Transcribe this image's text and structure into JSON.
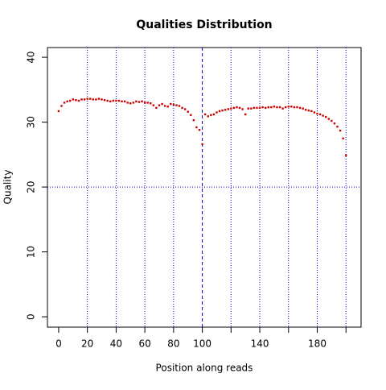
{
  "chart_data": {
    "type": "scatter",
    "title": "Qualities Distribution",
    "x_label": "Position along reads",
    "y_label": "Quality",
    "x": [
      0,
      2,
      4,
      6,
      8,
      10,
      12,
      14,
      16,
      18,
      20,
      22,
      24,
      26,
      28,
      30,
      32,
      34,
      36,
      38,
      40,
      42,
      44,
      46,
      48,
      50,
      52,
      54,
      56,
      58,
      60,
      62,
      64,
      66,
      68,
      70,
      72,
      74,
      76,
      78,
      80,
      82,
      84,
      86,
      88,
      90,
      92,
      94,
      96,
      98,
      100,
      102,
      104,
      106,
      108,
      110,
      112,
      114,
      116,
      118,
      120,
      122,
      124,
      126,
      128,
      130,
      132,
      134,
      136,
      138,
      140,
      142,
      144,
      146,
      148,
      150,
      152,
      154,
      156,
      158,
      160,
      162,
      164,
      166,
      168,
      170,
      172,
      174,
      176,
      178,
      180,
      182,
      184,
      186,
      188,
      190,
      192,
      194,
      196,
      198,
      200
    ],
    "series": [
      {
        "color": "#cc0000",
        "values": [
          31.7,
          32.5,
          33,
          33.2,
          33.3,
          33.5,
          33.4,
          33.3,
          33.5,
          33.5,
          33.6,
          33.6,
          33.5,
          33.5,
          33.6,
          33.5,
          33.4,
          33.3,
          33.2,
          33.3,
          33.3,
          33.3,
          33.2,
          33.2,
          33,
          32.9,
          33,
          33.2,
          33.1,
          33.2,
          33,
          33,
          32.9,
          32.6,
          32.2,
          32.6,
          32.8,
          32.5,
          32.4,
          32.8,
          32.7,
          32.6,
          32.5,
          32.2,
          32,
          31.6,
          31.1,
          30.3,
          29.2,
          28.8,
          26.6,
          31.2,
          30.9,
          31.1,
          31.2,
          31.5,
          31.7,
          31.8,
          31.9,
          32,
          32.1,
          32.2,
          32.3,
          32.2,
          32,
          31.2,
          32.1,
          32.1,
          32.2,
          32.2,
          32.2,
          32.3,
          32.2,
          32.3,
          32.3,
          32.4,
          32.3,
          32.3,
          32.1,
          32.3,
          32.4,
          32.4,
          32.3,
          32.3,
          32.2,
          32.1,
          31.9,
          31.8,
          31.7,
          31.5,
          31.3,
          31.2,
          31,
          30.8,
          30.5,
          30.2,
          29.8,
          29.3,
          28.7,
          27.5,
          24.9
        ]
      }
    ],
    "xlim": [
      -7.8,
      210.5
    ],
    "ylim": [
      -1.6,
      41.5
    ],
    "xticks": [
      0,
      20,
      40,
      60,
      80,
      100,
      {
        "value": 120,
        "label": null
      },
      140,
      {
        "value": 160,
        "label": null
      },
      180,
      {
        "value": 200,
        "label": null
      }
    ],
    "yticks": [
      0,
      10,
      20,
      30,
      40
    ],
    "reference_lines": {
      "color": "#0000cc",
      "x": [
        20,
        40,
        60,
        80,
        120,
        140,
        160,
        180,
        200
      ],
      "x_dashed": [
        100
      ],
      "y": [
        20
      ]
    }
  }
}
